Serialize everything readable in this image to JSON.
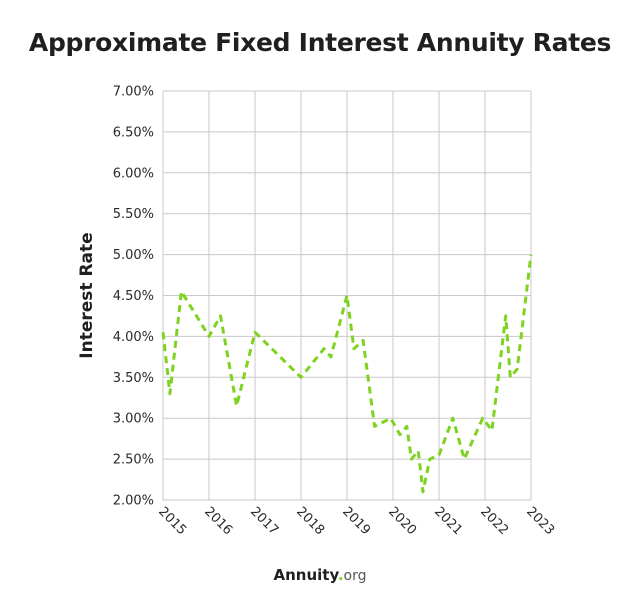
{
  "title": "Approximate Fixed Interest Annuity Rates",
  "brand": {
    "name": "Annuity",
    "dot": ".",
    "tld": "org"
  },
  "colors": {
    "line": "#7ed321",
    "grid": "#c8c8c8",
    "text": "#1f1f1f"
  },
  "chart_data": {
    "type": "line",
    "title": "Approximate Fixed Interest Annuity Rates",
    "xlabel": "",
    "ylabel": "Interest Rate",
    "x_ticks": [
      "2015",
      "2016",
      "2017",
      "2018",
      "2019",
      "2020",
      "2021",
      "2022",
      "2023"
    ],
    "y_ticks": [
      "2.00%",
      "2.50%",
      "3.00%",
      "3.50%",
      "4.00%",
      "4.50%",
      "5.00%",
      "5.50%",
      "6.00%",
      "6.50%",
      "7.00%"
    ],
    "xlim": [
      2015,
      2023
    ],
    "ylim": [
      2.0,
      7.0
    ],
    "grid": true,
    "line_style": "dashed",
    "series": [
      {
        "x": [
          2015.0,
          2015.15,
          2015.4,
          2016.0,
          2016.25,
          2016.6,
          2017.0,
          2018.0,
          2018.5,
          2018.65,
          2019.0,
          2019.15,
          2019.35,
          2019.6,
          2019.95,
          2020.15,
          2020.3,
          2020.4,
          2020.55,
          2020.65,
          2020.8,
          2021.0,
          2021.3,
          2021.55,
          2021.95,
          2022.15,
          2022.45,
          2022.55,
          2022.7,
          2023.0
        ],
        "y": [
          4.05,
          3.3,
          4.55,
          4.0,
          4.25,
          3.15,
          4.05,
          3.5,
          3.85,
          3.75,
          4.5,
          3.85,
          3.95,
          2.9,
          3.0,
          2.8,
          2.9,
          2.5,
          2.6,
          2.1,
          2.5,
          2.55,
          3.0,
          2.5,
          3.0,
          2.85,
          4.25,
          3.5,
          3.6,
          5.0
        ]
      }
    ]
  }
}
